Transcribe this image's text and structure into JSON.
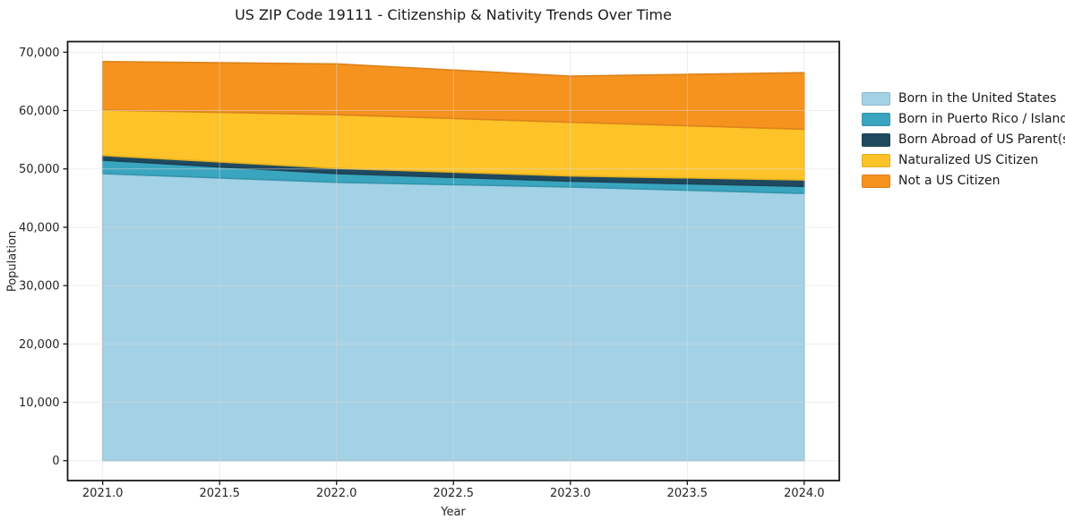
{
  "chart_data": {
    "type": "area",
    "stacked": true,
    "title": "US ZIP Code 19111 - Citizenship & Nativity Trends Over Time",
    "xlabel": "Year",
    "ylabel": "Population",
    "x": [
      2021,
      2022,
      2023,
      2024
    ],
    "series": [
      {
        "name": "Born in the United States",
        "color": "#A3D1E5",
        "values": [
          49200,
          47700,
          46900,
          45800
        ]
      },
      {
        "name": "Born in Puerto Rico / Islands",
        "color": "#3AA5BF",
        "values": [
          2300,
          1500,
          1000,
          1200
        ]
      },
      {
        "name": "Born Abroad of US Parent(s)",
        "color": "#1F495E",
        "values": [
          800,
          900,
          900,
          1100
        ]
      },
      {
        "name": "Naturalized US Citizen",
        "color": "#FDC328",
        "values": [
          7800,
          9200,
          9200,
          8700
        ]
      },
      {
        "name": "Not a US Citizen",
        "color": "#F6921E",
        "values": [
          8300,
          8700,
          7900,
          9700
        ]
      }
    ],
    "xlim": [
      2020.85,
      2024.15
    ],
    "ylim": [
      -3420,
      71820
    ],
    "x_ticks": {
      "values": [
        2021,
        2021.5,
        2022,
        2022.5,
        2023,
        2023.5,
        2024
      ],
      "labels": [
        "2021.0",
        "2021.5",
        "2022.0",
        "2022.5",
        "2023.0",
        "2023.5",
        "2024.0"
      ]
    },
    "y_ticks": {
      "values": [
        0,
        10000,
        20000,
        30000,
        40000,
        50000,
        60000,
        70000
      ],
      "labels": [
        "0",
        "10,000",
        "20,000",
        "30,000",
        "40,000",
        "50,000",
        "60,000",
        "70,000"
      ]
    },
    "grid": true,
    "legend_position": "right",
    "spine_color": "#1a1a1a",
    "tick_label_color": "#262626",
    "grid_color": "#dcdcdc"
  }
}
